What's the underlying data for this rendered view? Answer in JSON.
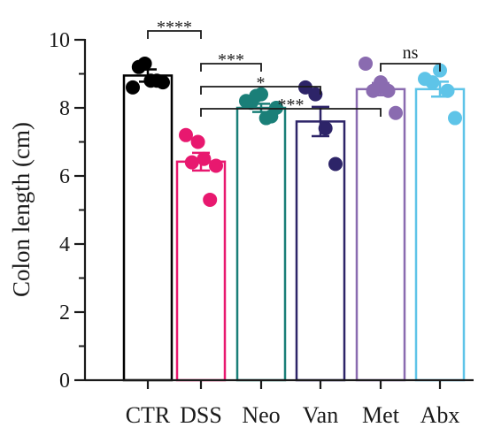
{
  "chart_data": {
    "type": "bar",
    "ylabel": "Colon length (cm)",
    "ylim": [
      0,
      10
    ],
    "yticks": [
      0,
      2,
      4,
      6,
      8,
      10
    ],
    "grid": false,
    "categories": [
      "CTR",
      "DSS",
      "Neo",
      "Van",
      "Met",
      "Abx"
    ],
    "colors": [
      "#000000",
      "#e8186f",
      "#1a7f78",
      "#2d2468",
      "#8a6bb0",
      "#5ec4e8"
    ],
    "means": [
      8.95,
      6.42,
      8.0,
      7.6,
      8.55,
      8.55
    ],
    "sem": [
      0.18,
      0.26,
      0.12,
      0.43,
      0.18,
      0.22
    ],
    "points": [
      [
        8.6,
        9.2,
        9.3,
        8.8,
        8.8,
        8.75
      ],
      [
        7.2,
        6.4,
        7.0,
        6.5,
        5.3,
        6.3
      ],
      [
        8.2,
        8.15,
        8.35,
        8.4,
        7.7,
        7.75,
        8.0
      ],
      [
        8.6,
        8.4,
        7.4,
        6.35
      ],
      [
        9.3,
        8.5,
        8.75,
        8.5,
        7.85
      ],
      [
        8.85,
        8.75,
        9.1,
        8.5,
        7.7
      ]
    ],
    "comparisons": [
      {
        "from": "CTR",
        "to": "DSS",
        "label": "****"
      },
      {
        "from": "DSS",
        "to": "Neo",
        "label": "***"
      },
      {
        "from": "DSS",
        "to": "Van",
        "label": "*"
      },
      {
        "from": "DSS",
        "to": "Met",
        "label": "***"
      },
      {
        "from": "Met",
        "to": "Abx",
        "label": "ns"
      }
    ]
  }
}
